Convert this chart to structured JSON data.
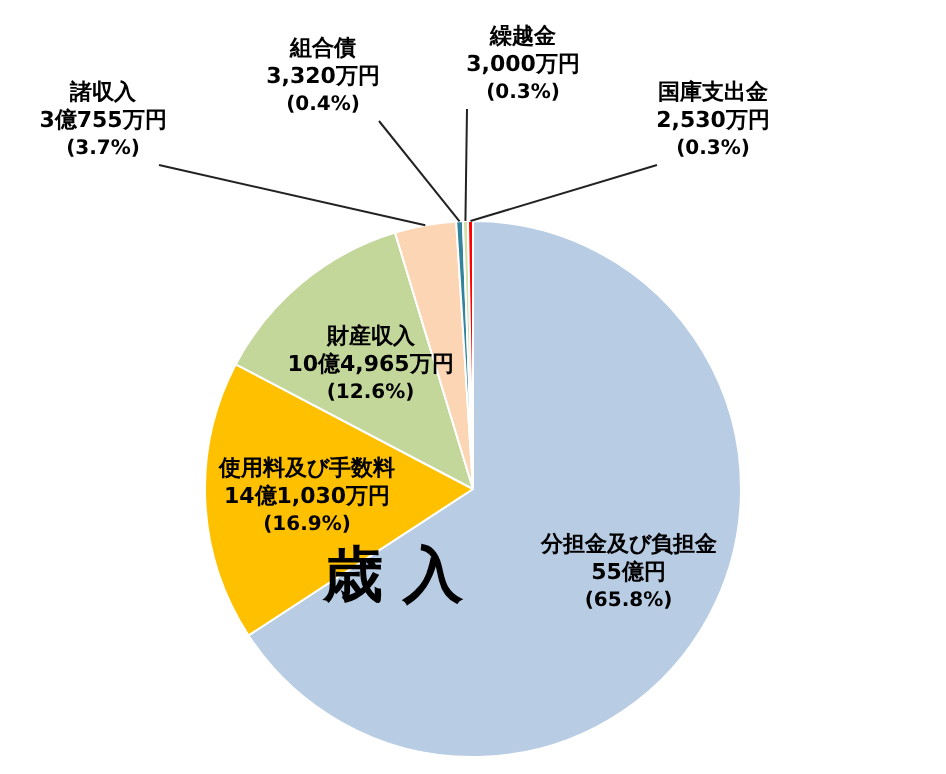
{
  "chart_data": {
    "type": "pie",
    "categories": [
      "分担金及び負担金",
      "使用料及び手数料",
      "財産収入",
      "諸収入",
      "組合債",
      "繰越金",
      "国庫支出金"
    ],
    "values": [
      65.8,
      16.9,
      12.6,
      3.7,
      0.4,
      0.3,
      0.3
    ],
    "value_labels": [
      "55億円\n(65.8%)",
      "14億1,030万円\n(16.9%)",
      "10億4,965万円\n(12.6%)",
      "3億755万円\n(3.7%)",
      "3,320万円\n(0.4%)",
      "3,000万円\n(0.3%)",
      "2,530万円\n(0.3%)"
    ],
    "colors": [
      "#b8cce4",
      "#ffc000",
      "#c4d79b",
      "#fcd5b4",
      "#31849b",
      "#d0e0a8",
      "#ff0000"
    ],
    "annotations": [
      "歳 入"
    ],
    "legend": false
  }
}
